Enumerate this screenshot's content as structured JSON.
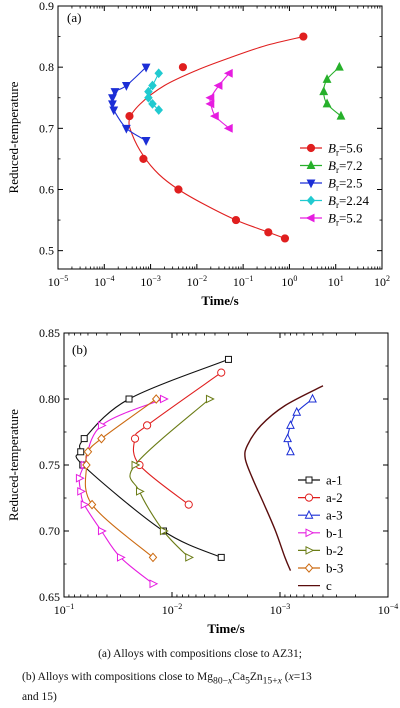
{
  "colors": {
    "red": "#e01f1f",
    "green": "#27b02b",
    "blue": "#1c2fd6",
    "cyan": "#21cad0",
    "magenta": "#e61de0",
    "black": "#111111",
    "olive": "#6b7c16",
    "orange": "#cc6a11",
    "darkred": "#5a0d0d"
  },
  "chart_data": [
    {
      "type": "scatter",
      "panel_label": "(a)",
      "xlabel": "Time/s",
      "ylabel": "Reduced-temperature",
      "xscale": "log",
      "xlim": [
        1e-05,
        100
      ],
      "ylim": [
        0.47,
        0.9
      ],
      "xticks": [
        {
          "v": 1e-05,
          "b": "10",
          "e": "−5"
        },
        {
          "v": 0.0001,
          "b": "10",
          "e": "−4"
        },
        {
          "v": 0.001,
          "b": "10",
          "e": "−3"
        },
        {
          "v": 0.01,
          "b": "10",
          "e": "−2"
        },
        {
          "v": 0.1,
          "b": "10",
          "e": "−1"
        },
        {
          "v": 1,
          "b": "10",
          "e": "0"
        },
        {
          "v": 10,
          "b": "10",
          "e": "1"
        },
        {
          "v": 100,
          "b": "10",
          "e": "2"
        }
      ],
      "yticks": [
        0.5,
        0.6,
        0.7,
        0.8,
        0.9
      ],
      "legend_position": "bottom-right",
      "series": [
        {
          "name": "Br=5.6",
          "legend_main": "B",
          "legend_sub": "r",
          "legend_val": "=5.6",
          "color": "#e01f1f",
          "marker": "circle",
          "points": [
            [
              2,
              0.85
            ],
            [
              0.005,
              0.8
            ],
            [
              0.00035,
              0.72
            ],
            [
              0.0007,
              0.65
            ],
            [
              0.004,
              0.6
            ],
            [
              0.07,
              0.55
            ],
            [
              0.35,
              0.53
            ],
            [
              0.8,
              0.52
            ]
          ],
          "curve": [
            [
              2,
              0.85
            ],
            [
              0.3,
              0.835
            ],
            [
              0.05,
              0.815
            ],
            [
              0.01,
              0.795
            ],
            [
              0.002,
              0.77
            ],
            [
              0.0006,
              0.74
            ],
            [
              0.00035,
              0.715
            ],
            [
              0.0004,
              0.69
            ],
            [
              0.0007,
              0.655
            ],
            [
              0.0015,
              0.625
            ],
            [
              0.004,
              0.6
            ],
            [
              0.015,
              0.575
            ],
            [
              0.07,
              0.55
            ],
            [
              0.3,
              0.532
            ],
            [
              0.8,
              0.52
            ]
          ]
        },
        {
          "name": "Br=7.2",
          "legend_main": "B",
          "legend_sub": "r",
          "legend_val": "=7.2",
          "color": "#27b02b",
          "marker": "triangle-up",
          "points": [
            [
              12,
              0.8
            ],
            [
              6.5,
              0.78
            ],
            [
              5.5,
              0.76
            ],
            [
              6.5,
              0.74
            ],
            [
              13,
              0.72
            ]
          ]
        },
        {
          "name": "Br=2.5",
          "legend_main": "B",
          "legend_sub": "r",
          "legend_val": "=2.5",
          "color": "#1c2fd6",
          "marker": "triangle-down",
          "points": [
            [
              0.0008,
              0.8
            ],
            [
              0.0003,
              0.77
            ],
            [
              0.00017,
              0.76
            ],
            [
              0.00015,
              0.75
            ],
            [
              0.00015,
              0.74
            ],
            [
              0.00016,
              0.73
            ],
            [
              0.0003,
              0.7
            ],
            [
              0.0008,
              0.68
            ]
          ]
        },
        {
          "name": "Br=2.24",
          "legend_main": "B",
          "legend_sub": "r",
          "legend_val": "=2.24",
          "color": "#21cad0",
          "marker": "diamond",
          "points": [
            [
              0.0015,
              0.79
            ],
            [
              0.0011,
              0.77
            ],
            [
              0.0009,
              0.76
            ],
            [
              0.0009,
              0.75
            ],
            [
              0.0011,
              0.74
            ],
            [
              0.0015,
              0.73
            ]
          ]
        },
        {
          "name": "Br=5.2",
          "legend_main": "B",
          "legend_sub": "r",
          "legend_val": "=5.2",
          "color": "#e61de0",
          "marker": "triangle-left",
          "points": [
            [
              0.05,
              0.79
            ],
            [
              0.03,
              0.77
            ],
            [
              0.02,
              0.75
            ],
            [
              0.02,
              0.74
            ],
            [
              0.025,
              0.72
            ],
            [
              0.05,
              0.7
            ]
          ]
        }
      ]
    },
    {
      "type": "scatter",
      "panel_label": "(b)",
      "xlabel": "Time/s",
      "ylabel": "Reduced-temperature",
      "xscale": "log-reversed",
      "xlim": [
        0.1,
        0.0001
      ],
      "ylim": [
        0.65,
        0.85
      ],
      "xticks": [
        {
          "v": 0.1,
          "b": "10",
          "e": "−1"
        },
        {
          "v": 0.01,
          "b": "10",
          "e": "−2"
        },
        {
          "v": 0.001,
          "b": "10",
          "e": "−3"
        },
        {
          "v": 0.0001,
          "b": "10",
          "e": "−4"
        }
      ],
      "yticks": [
        0.65,
        0.7,
        0.75,
        0.8,
        0.85
      ],
      "legend_position": "bottom-right",
      "series": [
        {
          "name": "a-1",
          "color": "#111111",
          "marker": "square",
          "points": [
            [
              0.003,
              0.83
            ],
            [
              0.025,
              0.8
            ],
            [
              0.065,
              0.77
            ],
            [
              0.07,
              0.76
            ],
            [
              0.067,
              0.75
            ],
            [
              0.012,
              0.7
            ],
            [
              0.0035,
              0.68
            ]
          ]
        },
        {
          "name": "a-2",
          "color": "#e01f1f",
          "marker": "circle",
          "points": [
            [
              0.0035,
              0.82
            ],
            [
              0.017,
              0.78
            ],
            [
              0.022,
              0.77
            ],
            [
              0.02,
              0.75
            ],
            [
              0.007,
              0.72
            ]
          ]
        },
        {
          "name": "a-3",
          "color": "#1c2fd6",
          "marker": "triangle-up",
          "points": [
            [
              0.0005,
              0.8
            ],
            [
              0.0007,
              0.79
            ],
            [
              0.0008,
              0.78
            ],
            [
              0.00085,
              0.77
            ],
            [
              0.0008,
              0.76
            ]
          ]
        },
        {
          "name": "b-1",
          "color": "#e61de0",
          "marker": "triangle-right",
          "points": [
            [
              0.012,
              0.8
            ],
            [
              0.045,
              0.78
            ],
            [
              0.065,
              0.75
            ],
            [
              0.072,
              0.74
            ],
            [
              0.07,
              0.73
            ],
            [
              0.065,
              0.72
            ],
            [
              0.045,
              0.7
            ],
            [
              0.03,
              0.68
            ],
            [
              0.015,
              0.66
            ]
          ]
        },
        {
          "name": "b-2",
          "color": "#6b7c16",
          "marker": "triangle-right",
          "points": [
            [
              0.0045,
              0.8
            ],
            [
              0.022,
              0.75
            ],
            [
              0.02,
              0.73
            ],
            [
              0.012,
              0.7
            ],
            [
              0.007,
              0.68
            ]
          ]
        },
        {
          "name": "b-3",
          "color": "#cc6a11",
          "marker": "diamond",
          "points": [
            [
              0.014,
              0.8
            ],
            [
              0.045,
              0.77
            ],
            [
              0.06,
              0.76
            ],
            [
              0.062,
              0.75
            ],
            [
              0.055,
              0.72
            ],
            [
              0.015,
              0.68
            ]
          ]
        },
        {
          "name": "c",
          "color": "#5a0d0d",
          "marker": "none",
          "points": [
            [
              0.0004,
              0.81
            ],
            [
              0.0009,
              0.795
            ],
            [
              0.0015,
              0.78
            ],
            [
              0.002,
              0.765
            ],
            [
              0.0021,
              0.755
            ],
            [
              0.0018,
              0.74
            ],
            [
              0.0014,
              0.72
            ],
            [
              0.0011,
              0.7
            ],
            [
              0.0009,
              0.68
            ],
            [
              0.0008,
              0.67
            ]
          ]
        }
      ]
    }
  ],
  "caption_a": "(a)  Alloys with compositions close to AZ31;",
  "caption_b": {
    "prefix": "(b) Alloys with compositions close to Mg",
    "sub1": "80−",
    "x1": "x",
    "mid1": "Ca",
    "sub2": "5",
    "mid2": "Zn",
    "sub3": "15+",
    "x2": "x",
    "suffix1": " (",
    "x3": "x",
    "suffix2": "=13",
    "line2": "and 15)"
  }
}
